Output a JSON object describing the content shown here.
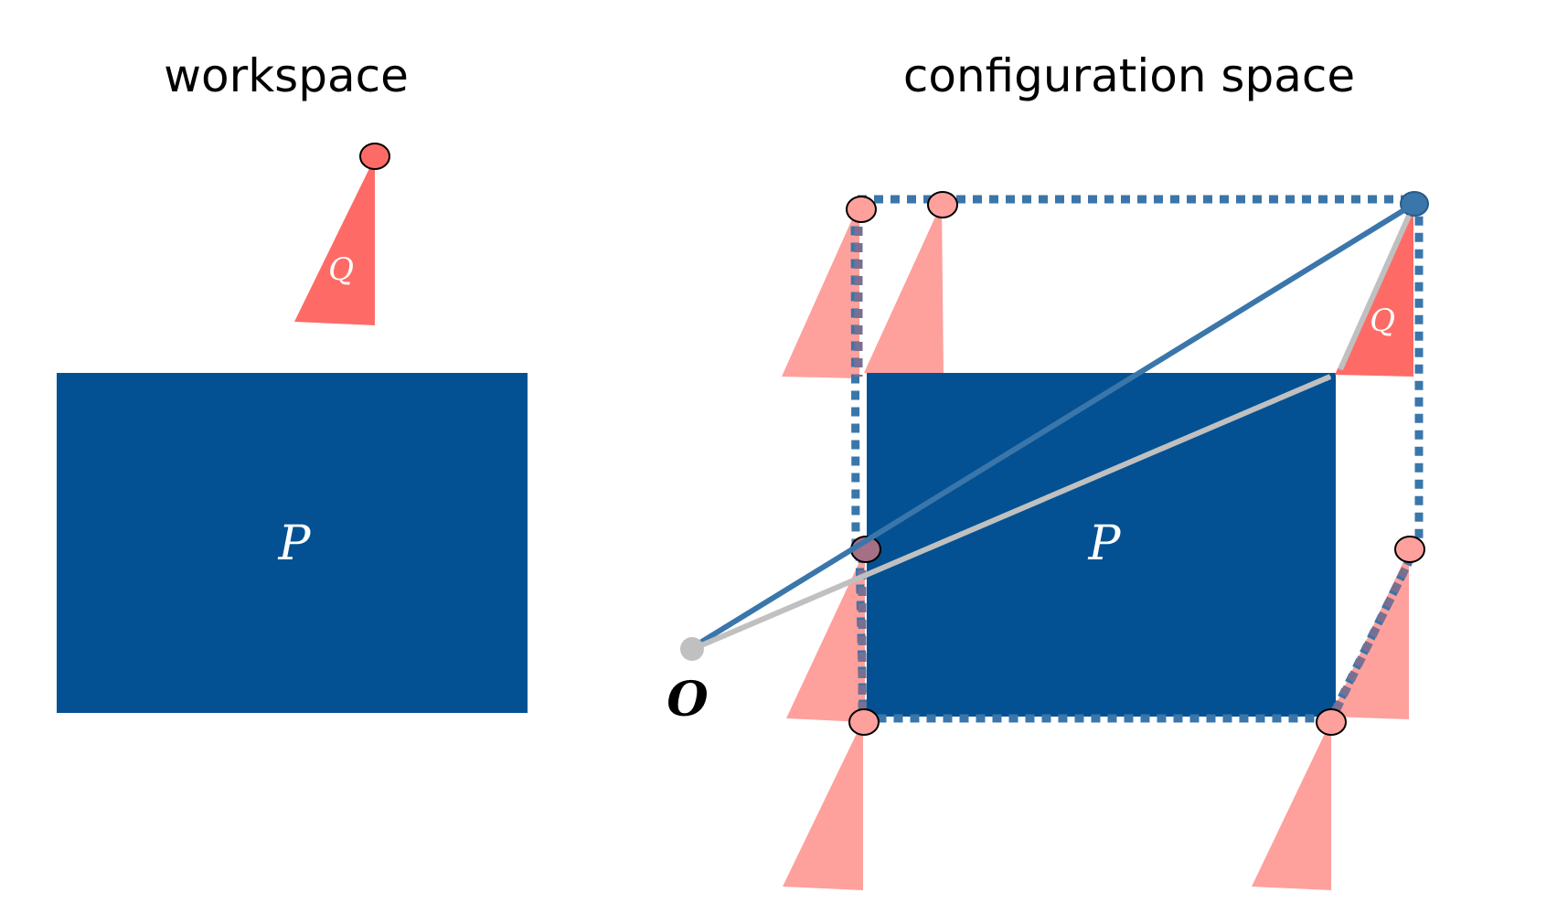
{
  "titles": {
    "workspace": "workspace",
    "configuration": "configuration space"
  },
  "labels": {
    "P_workspace": "P",
    "Q_workspace": "Q",
    "P_config": "P",
    "Q_config": "Q",
    "origin": "O"
  },
  "colors": {
    "obstacle": "#035192",
    "robot": "#fe6b66",
    "robot_ghost": "#fea09c",
    "dotted_boundary": "#3a76aa",
    "blue_vector": "#3a76aa",
    "gray_vector": "#c0c0c0",
    "origin_point": "#c0c0c0",
    "background": "#ffffff"
  }
}
